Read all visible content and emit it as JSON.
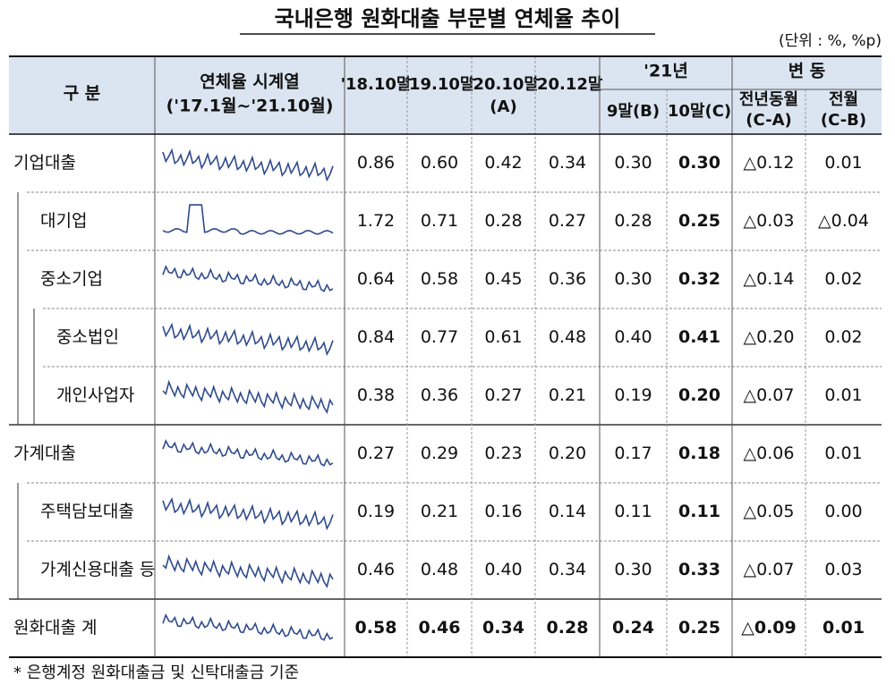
{
  "title": "국내은행 원화대출 부문별 연체율 추이",
  "unit": "(단위 : %, %p)",
  "header": {
    "category": "구 분",
    "series_title": [
      "연체율 시계열",
      "('17.1월~'21.10월)"
    ],
    "periods": [
      [
        "'18.10말"
      ],
      [
        "'19.10말"
      ],
      [
        "'20.10말",
        "(A)"
      ],
      [
        "'20.12말"
      ]
    ],
    "year_group": "'21년",
    "year_cols": [
      "9말(B)",
      "10말(C)"
    ],
    "change_group": "변 동",
    "change_cols": [
      [
        "전년동월",
        "(C-A)"
      ],
      [
        "전월",
        "(C-B)"
      ]
    ]
  },
  "rows": [
    {
      "label": "기업대출",
      "values": [
        "0.86",
        "0.60",
        "0.42",
        "0.34",
        "0.30",
        "0.30",
        "△0.12",
        "0.01"
      ]
    },
    {
      "label": "대기업",
      "values": [
        "1.72",
        "0.71",
        "0.28",
        "0.27",
        "0.28",
        "0.25",
        "△0.03",
        "△0.04"
      ]
    },
    {
      "label": "중소기업",
      "values": [
        "0.64",
        "0.58",
        "0.45",
        "0.36",
        "0.30",
        "0.32",
        "△0.14",
        "0.02"
      ]
    },
    {
      "label": "중소법인",
      "values": [
        "0.84",
        "0.77",
        "0.61",
        "0.48",
        "0.40",
        "0.41",
        "△0.20",
        "0.02"
      ]
    },
    {
      "label": "개인사업자",
      "values": [
        "0.38",
        "0.36",
        "0.27",
        "0.21",
        "0.19",
        "0.20",
        "△0.07",
        "0.01"
      ]
    },
    {
      "label": "가계대출",
      "values": [
        "0.27",
        "0.29",
        "0.23",
        "0.20",
        "0.17",
        "0.18",
        "△0.06",
        "0.01"
      ]
    },
    {
      "label": "주택담보대출",
      "values": [
        "0.19",
        "0.21",
        "0.16",
        "0.14",
        "0.11",
        "0.11",
        "△0.05",
        "0.00"
      ]
    },
    {
      "label": "가계신용대출 등",
      "values": [
        "0.46",
        "0.48",
        "0.40",
        "0.34",
        "0.30",
        "0.33",
        "△0.07",
        "0.03"
      ]
    },
    {
      "label": "원화대출 계",
      "values": [
        "0.58",
        "0.46",
        "0.34",
        "0.28",
        "0.24",
        "0.25",
        "△0.09",
        "0.01"
      ]
    }
  ],
  "footnote": "* 은행계정 원화대출금 및 신탁대출금 기준"
}
